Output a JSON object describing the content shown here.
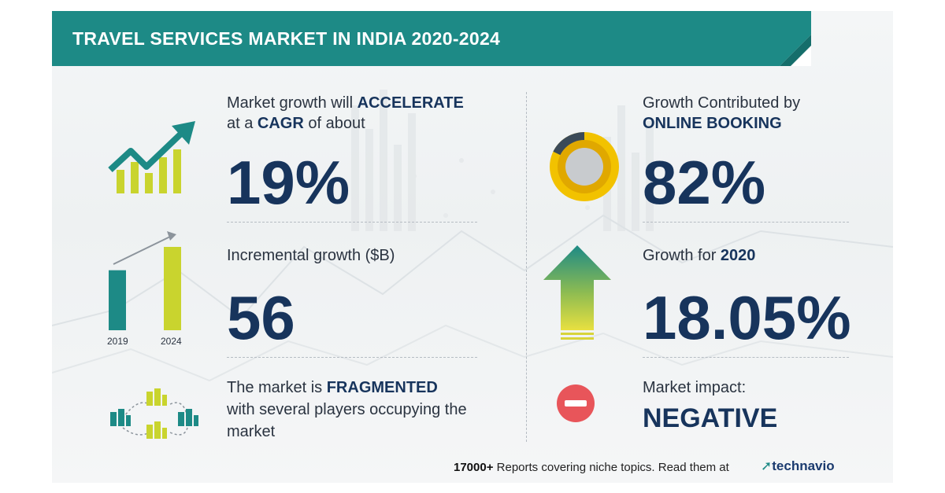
{
  "header": {
    "title": "TRAVEL SERVICES MARKET IN INDIA 2020-2024"
  },
  "cagr": {
    "line1_prefix": "Market growth will",
    "line1_emph": "ACCELERATE",
    "line2_prefix": "at a",
    "line2_emph": "CAGR",
    "line2_suffix": "of about",
    "value": "19%"
  },
  "incremental": {
    "label": "Incremental growth ($B)",
    "value": "56",
    "bars": [
      {
        "year": "2019",
        "level": 0.72,
        "color": "#1d8a86"
      },
      {
        "year": "2024",
        "level": 1.0,
        "color": "#c9d42e"
      }
    ]
  },
  "fragmented": {
    "line1_prefix": "The market is",
    "line1_emph": "FRAGMENTED",
    "line2": "with several players occupying the",
    "line3": "market"
  },
  "contribution": {
    "line1": "Growth Contributed by",
    "line2_emph": "ONLINE BOOKING",
    "value": "82%"
  },
  "growth2020": {
    "label_prefix": "Growth for",
    "label_emph": "2020",
    "value": "18.05%"
  },
  "impact": {
    "label": "Market impact:",
    "value": "NEGATIVE"
  },
  "footer": {
    "count": "17000+",
    "text": "Reports covering niche topics. Read them at",
    "logo": "technavio"
  },
  "colors": {
    "teal": "#1d8a86",
    "lime": "#c9d42e",
    "navy": "#17345c",
    "amber": "#f2c200",
    "red": "#e8555a"
  },
  "icons": {
    "trend": "trend-up-icon",
    "bars": "bar-growth-icon",
    "buildings": "buildings-network-icon",
    "donut": "donut-chart-icon",
    "arrow": "arrow-up-icon",
    "minus": "minus-circle-icon"
  }
}
